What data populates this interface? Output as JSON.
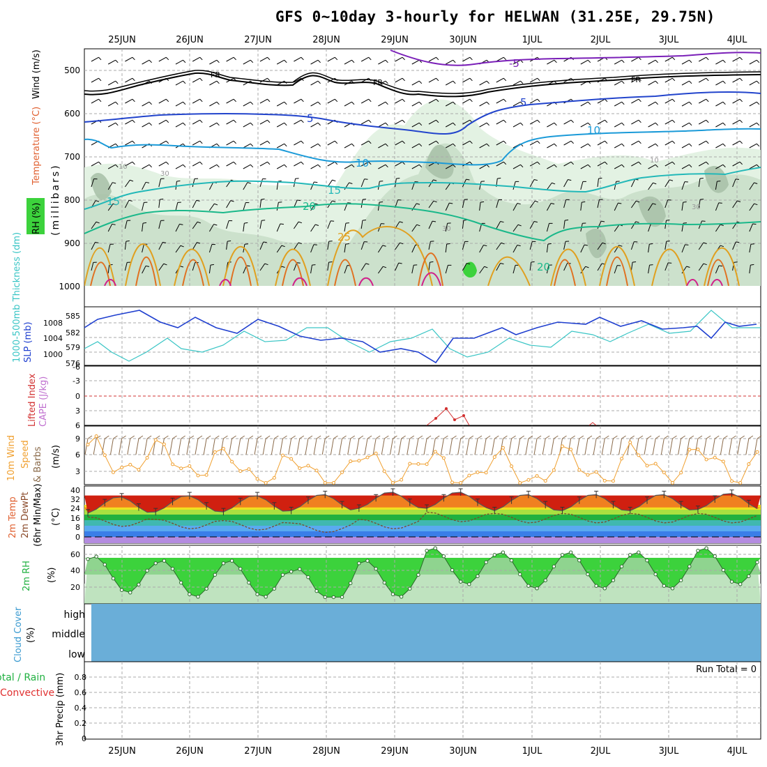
{
  "title": "GFS 0~10day 3-hourly for HELWAN (31.25E, 29.75N)",
  "date_labels": [
    "25JUN",
    "26JUN",
    "27JUN",
    "28JUN",
    "29JUN",
    "30JUN",
    "1JUL",
    "2JUL",
    "3JUL",
    "4JUL"
  ],
  "panels": {
    "upper": {
      "ylabel_rh": "RH (%)",
      "ylabel_temp": "Temperature (°C)",
      "ylabel_wind": "Wind (m/s)",
      "ylabel_mb": "(millibars)",
      "ticks": [
        "500",
        "600",
        "700",
        "800",
        "900",
        "1000"
      ],
      "contour_labels": [
        "FR",
        "FR",
        "FR",
        "5",
        "5",
        "-5",
        "10",
        "10",
        "15",
        "15",
        "20",
        "25",
        "10",
        "30",
        "30",
        "10",
        "30",
        "20"
      ]
    },
    "slp": {
      "ylabel_thick": "1000-500mb Thickness (dm)",
      "ylabel_slp": "SLP (mb)",
      "left_ticks": [
        "585",
        "582",
        "579",
        "576"
      ],
      "right_ticks": [
        "1008",
        "1004",
        "1000"
      ]
    },
    "li": {
      "ylabel_li": "Lifted Index",
      "ylabel_cape": "CAPE (J/kg)",
      "ticks": [
        "-6",
        "-3",
        "0",
        "3",
        "6"
      ]
    },
    "wind10": {
      "ylabel_a": "10m Wind",
      "ylabel_b": "Speed",
      "ylabel_c": "& Barbs",
      "unit": "(m/s)",
      "ticks": [
        "9",
        "6",
        "3"
      ]
    },
    "temp": {
      "ylabel_a": "2m Temp",
      "ylabel_b": "2m DewPt",
      "ylabel_c": "(6hr Min/Max)",
      "unit": "(°C)",
      "ticks": [
        "40",
        "32",
        "24",
        "16",
        "8",
        "0"
      ]
    },
    "rh": {
      "ylabel": "2m RH",
      "unit": "(%)",
      "ticks": [
        "60",
        "40",
        "20"
      ]
    },
    "cloud": {
      "ylabel": "Cloud Cover",
      "unit": "(%)",
      "levels": [
        "high",
        "middle",
        "low"
      ]
    },
    "precip": {
      "ylabel_a": "3hr Precip (mm)",
      "ylabel_total": "Total / Rain",
      "ylabel_conv": "Convective",
      "run_total": "Run Total = 0",
      "ticks": [
        "0.8",
        "0.6",
        "0.4",
        "0.2",
        "0"
      ]
    }
  },
  "colors": {
    "frame": "#000000",
    "slp": "#1f3fcf",
    "thickness": "#39c5c5",
    "lifted": "#d23030",
    "wind_speed": "#f0a030",
    "barb": "#8a6a4a",
    "rh_fill": "#3cd23c",
    "cloud": "#6aaed8",
    "temp_line": "#555555"
  },
  "chart_data": [
    {
      "type": "line",
      "title": "1000-500mb Thickness (dm) / SLP (mb)",
      "x": [
        "25JUN",
        "26JUN",
        "27JUN",
        "28JUN",
        "29JUN",
        "30JUN",
        "1JUL",
        "2JUL",
        "3JUL",
        "4JUL"
      ],
      "series": [
        {
          "name": "SLP (mb)",
          "values": [
            1008.5,
            1007.5,
            1007.8,
            1003.5,
            1001.5,
            1002.5,
            1006.5,
            1007.5,
            1006.5,
            1007.8
          ]
        },
        {
          "name": "1000-500mb Thickness (dm)",
          "values": [
            577.5,
            578.5,
            580.5,
            582.0,
            579.5,
            577.5,
            580.5,
            581.5,
            582.0,
            583.0
          ]
        }
      ]
    },
    {
      "type": "line",
      "title": "10m Wind Speed (m/s)",
      "x": [
        "25JUN",
        "26JUN",
        "27JUN",
        "28JUN",
        "29JUN",
        "30JUN",
        "1JUL",
        "2JUL",
        "3JUL",
        "4JUL"
      ],
      "values": [
        5.5,
        5.0,
        3.5,
        3.0,
        4.0,
        3.5,
        3.5,
        4.0,
        4.5,
        4.5
      ],
      "ylim": [
        1,
        11
      ]
    },
    {
      "type": "line",
      "title": "2m Temp / 2m DewPt (°C)",
      "x": [
        "25JUN",
        "26JUN",
        "27JUN",
        "28JUN",
        "29JUN",
        "30JUN",
        "1JUL",
        "2JUL",
        "3JUL",
        "4JUL"
      ],
      "series": [
        {
          "name": "2m Temp",
          "values": [
            33,
            34,
            34,
            35,
            37,
            37,
            35,
            35,
            35,
            36
          ]
        },
        {
          "name": "2m DewPt",
          "values": [
            12,
            10,
            9,
            7,
            10,
            16,
            15,
            15,
            15,
            15
          ]
        }
      ],
      "ylim": [
        -6,
        42
      ]
    },
    {
      "type": "line",
      "title": "2m RH (%)",
      "x": [
        "25JUN",
        "26JUN",
        "27JUN",
        "28JUN",
        "29JUN",
        "30JUN",
        "1JUL",
        "2JUL",
        "3JUL",
        "4JUL"
      ],
      "values": [
        40,
        35,
        35,
        25,
        35,
        50,
        45,
        45,
        45,
        50
      ],
      "ylim": [
        0,
        70
      ]
    },
    {
      "type": "bar",
      "title": "3hr Precip (mm)",
      "categories": [
        "25JUN",
        "26JUN",
        "27JUN",
        "28JUN",
        "29JUN",
        "30JUN",
        "1JUL",
        "2JUL",
        "3JUL",
        "4JUL"
      ],
      "values": [
        0,
        0,
        0,
        0,
        0,
        0,
        0,
        0,
        0,
        0
      ],
      "ylim": [
        0,
        1
      ]
    }
  ]
}
